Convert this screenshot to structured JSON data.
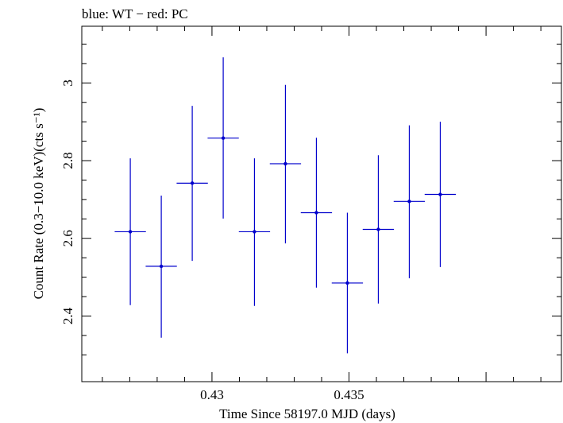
{
  "chart_data": {
    "type": "scatter",
    "title": "blue: WT − red: PC",
    "xlabel": "Time Since 58197.0 MJD (days)",
    "ylabel": "Count Rate (0.3−10.0 keV)(cts s⁻¹)",
    "xlim": [
      0.42525,
      0.44275
    ],
    "ylim": [
      2.231,
      3.146
    ],
    "x_ticks": [
      0.43,
      0.435
    ],
    "x_tick_labels": [
      "0.43",
      "0.435"
    ],
    "y_ticks": [
      2.4,
      2.6,
      2.8,
      3.0
    ],
    "y_tick_labels": [
      "2.4",
      "2.6",
      "2.8",
      "3"
    ],
    "series": [
      {
        "color": "#0000cc",
        "points": [
          {
            "x": 0.42702,
            "xerr": 0.00057,
            "y": 2.617,
            "ylo": 2.428,
            "yhi": 2.806
          },
          {
            "x": 0.42815,
            "xerr": 0.00057,
            "y": 2.528,
            "ylo": 2.344,
            "yhi": 2.71
          },
          {
            "x": 0.42928,
            "xerr": 0.00057,
            "y": 2.742,
            "ylo": 2.542,
            "yhi": 2.941
          },
          {
            "x": 0.43041,
            "xerr": 0.00057,
            "y": 2.858,
            "ylo": 2.651,
            "yhi": 3.066
          },
          {
            "x": 0.43155,
            "xerr": 0.00057,
            "y": 2.617,
            "ylo": 2.426,
            "yhi": 2.806
          },
          {
            "x": 0.43268,
            "xerr": 0.00057,
            "y": 2.792,
            "ylo": 2.587,
            "yhi": 2.995
          },
          {
            "x": 0.43381,
            "xerr": 0.00057,
            "y": 2.666,
            "ylo": 2.473,
            "yhi": 2.859
          },
          {
            "x": 0.43494,
            "xerr": 0.00057,
            "y": 2.485,
            "ylo": 2.304,
            "yhi": 2.666
          },
          {
            "x": 0.43607,
            "xerr": 0.00057,
            "y": 2.623,
            "ylo": 2.432,
            "yhi": 2.814
          },
          {
            "x": 0.4372,
            "xerr": 0.00057,
            "y": 2.695,
            "ylo": 2.497,
            "yhi": 2.891
          },
          {
            "x": 0.43833,
            "xerr": 0.00057,
            "y": 2.713,
            "ylo": 2.526,
            "yhi": 2.9
          }
        ]
      }
    ]
  }
}
